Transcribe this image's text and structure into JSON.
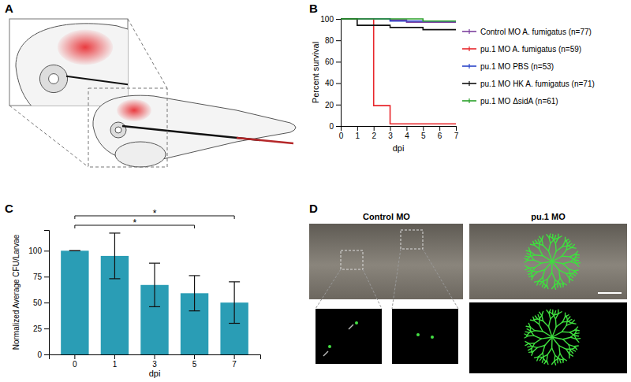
{
  "chart_data": [
    {
      "type": "line",
      "line_style": "step",
      "legend": "right",
      "x": [
        0,
        1,
        2,
        3,
        4,
        5,
        6,
        7
      ],
      "xlabel": "dpi",
      "ylabel": "Percent survival",
      "xlim": [
        0,
        7
      ],
      "ylim": [
        0,
        100
      ],
      "xticks": [
        0,
        1,
        2,
        3,
        4,
        5,
        6,
        7
      ],
      "yticks": [
        0,
        20,
        40,
        60,
        80,
        100
      ],
      "series": [
        {
          "name": "Control MO A. fumigatus (n=77)",
          "color": "#7b3f9e",
          "values": [
            100,
            100,
            100,
            99,
            97,
            97,
            97,
            97
          ]
        },
        {
          "name": "pu.1 MO A. fumigatus (n=59)",
          "color": "#e8262b",
          "values": [
            100,
            100,
            19,
            2,
            2,
            2,
            2,
            2
          ]
        },
        {
          "name": "pu.1 MO PBS (n=53)",
          "color": "#2b45c8",
          "values": [
            100,
            100,
            100,
            98,
            98,
            98,
            98,
            98
          ]
        },
        {
          "name": "pu.1 MO HK A. fumigatus (n=71)",
          "color": "#111111",
          "values": [
            100,
            94,
            94,
            92,
            92,
            90,
            90,
            90
          ]
        },
        {
          "name": "pu.1 MO ΔsidA (n=61)",
          "color": "#2aa02a",
          "values": [
            100,
            100,
            100,
            100,
            100,
            98,
            98,
            98
          ]
        }
      ]
    },
    {
      "type": "bar",
      "categories": [
        "0",
        "1",
        "3",
        "5",
        "7"
      ],
      "values": [
        100,
        95,
        67,
        59,
        50
      ],
      "errors": [
        0,
        22,
        21,
        17,
        20
      ],
      "color": "#2a9db5",
      "xlabel": "dpi",
      "ylabel": "Normalized Average CFU/Larvae",
      "ylim": [
        0,
        120
      ],
      "yticks": [
        0,
        25,
        50,
        75,
        100
      ],
      "annotations": [
        {
          "text": "*",
          "from": 0,
          "to": 3
        },
        {
          "text": "*",
          "from": 0,
          "to": 4
        }
      ]
    }
  ],
  "panel_labels": [
    "A",
    "B",
    "C",
    "D"
  ],
  "images": {
    "titles": [
      "Control MO",
      "pu.1 MO"
    ]
  }
}
